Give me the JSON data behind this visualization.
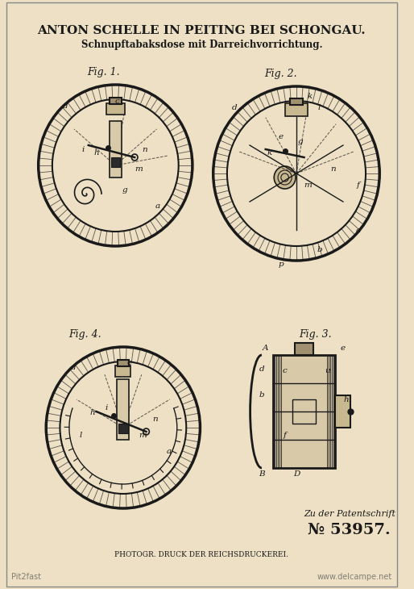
{
  "bg_color": "#f0e6cc",
  "border_color": "#2a2a2a",
  "title1": "ANTON SCHELLE IN PEITING BEI SCHONGAU.",
  "title2": "Schnupftabaksdose mit Darreichvorrichtung.",
  "fig1_label": "Fig. 1.",
  "fig2_label": "Fig. 2.",
  "fig3_label": "Fig. 3.",
  "fig4_label": "Fig. 4.",
  "patent_text": "Zu der Patentschrift",
  "patent_number": "№ 53957.",
  "printer_text": "PHOTOGR. DRUCK DER REICHSDRUCKEREI.",
  "watermark_left": "Pit2fast",
  "watermark_right": "www.delcampe.net",
  "line_color": "#1a1a1a",
  "hatch_color": "#2a2a2a",
  "paper_color": "#ede0c4"
}
